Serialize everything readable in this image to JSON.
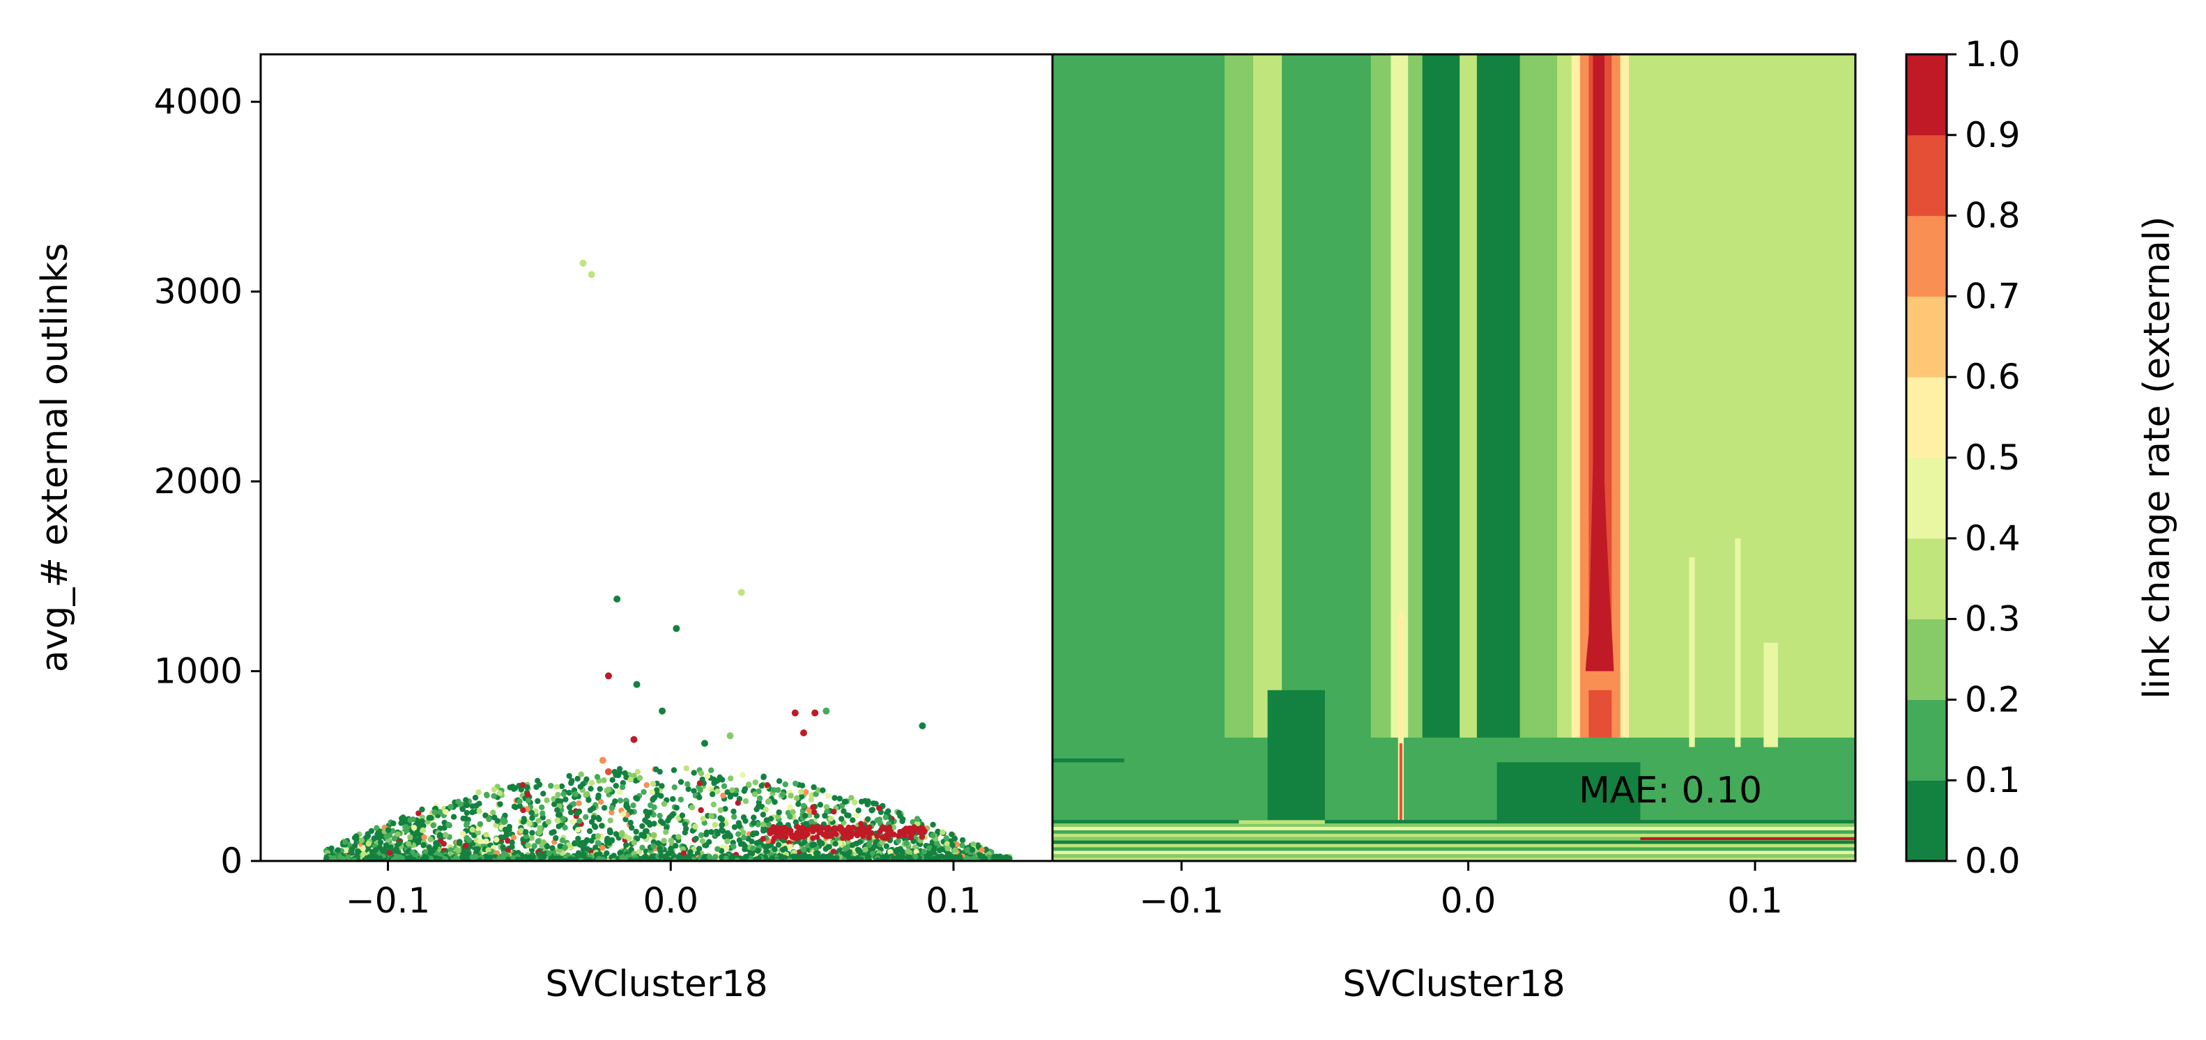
{
  "chart_data": [
    {
      "type": "scatter",
      "xlabel": "SVCluster18",
      "ylabel": "avg_# external outlinks",
      "xlim": [
        -0.145,
        0.135
      ],
      "ylim": [
        0,
        4250
      ],
      "xticks": [
        -0.1,
        0.0,
        0.1
      ],
      "xtick_labels": [
        "−0.1",
        "0.0",
        "0.1"
      ],
      "yticks": [
        0,
        1000,
        2000,
        3000,
        4000
      ],
      "ytick_labels": [
        "0",
        "1000",
        "2000",
        "3000",
        "4000"
      ],
      "color_by": "link change rate (external)",
      "points": [
        {
          "x": -0.031,
          "y": 3150,
          "c": 0.35
        },
        {
          "x": -0.028,
          "y": 3090,
          "c": 0.35
        },
        {
          "x": 0.025,
          "y": 1415,
          "c": 0.35
        },
        {
          "x": -0.019,
          "y": 1380,
          "c": 0.05
        },
        {
          "x": 0.002,
          "y": 1225,
          "c": 0.05
        },
        {
          "x": -0.022,
          "y": 975,
          "c": 0.95
        },
        {
          "x": -0.012,
          "y": 930,
          "c": 0.05
        },
        {
          "x": 0.089,
          "y": 712,
          "c": 0.05
        },
        {
          "x": 0.044,
          "y": 780,
          "c": 0.95
        },
        {
          "x": 0.051,
          "y": 780,
          "c": 0.95
        },
        {
          "x": 0.047,
          "y": 675,
          "c": 0.95
        },
        {
          "x": 0.055,
          "y": 790,
          "c": 0.15
        },
        {
          "x": -0.013,
          "y": 640,
          "c": 0.95
        },
        {
          "x": -0.024,
          "y": 530,
          "c": 0.75
        },
        {
          "x": -0.022,
          "y": 470,
          "c": 0.85
        },
        {
          "x": 0.021,
          "y": 660,
          "c": 0.25
        },
        {
          "x": -0.003,
          "y": 790,
          "c": 0.05
        },
        {
          "x": 0.012,
          "y": 620,
          "c": 0.05
        }
      ],
      "dense_cloud": {
        "x_range": [
          -0.122,
          0.12
        ],
        "y_typical_max": 450
      }
    },
    {
      "type": "heatmap",
      "xlabel": "SVCluster18",
      "xlim": [
        -0.145,
        0.135
      ],
      "ylim": [
        0,
        4250
      ],
      "xticks": [
        -0.1,
        0.0,
        0.1
      ],
      "xtick_labels": [
        "−0.1",
        "0.0",
        "0.1"
      ],
      "annotation": "MAE: 0.10",
      "vertical_bands": [
        {
          "x0": -0.145,
          "x1": -0.085,
          "c": 0.15
        },
        {
          "x0": -0.085,
          "x1": -0.075,
          "c": 0.25
        },
        {
          "x0": -0.075,
          "x1": -0.065,
          "c": 0.35
        },
        {
          "x0": -0.065,
          "x1": -0.034,
          "c": 0.15
        },
        {
          "x0": -0.034,
          "x1": -0.027,
          "c": 0.25
        },
        {
          "x0": -0.027,
          "x1": -0.021,
          "c": 0.45
        },
        {
          "x0": -0.021,
          "x1": -0.016,
          "c": 0.25
        },
        {
          "x0": -0.016,
          "x1": -0.003,
          "c": 0.05
        },
        {
          "x0": -0.003,
          "x1": 0.003,
          "c": 0.35
        },
        {
          "x0": 0.003,
          "x1": 0.018,
          "c": 0.05
        },
        {
          "x0": 0.018,
          "x1": 0.031,
          "c": 0.25
        },
        {
          "x0": 0.031,
          "x1": 0.036,
          "c": 0.35
        },
        {
          "x0": 0.036,
          "x1": 0.039,
          "c": 0.55
        },
        {
          "x0": 0.039,
          "x1": 0.042,
          "c": 0.75
        },
        {
          "x0": 0.042,
          "x1": 0.05,
          "c": 0.85
        },
        {
          "x0": 0.05,
          "x1": 0.053,
          "c": 0.75
        },
        {
          "x0": 0.053,
          "x1": 0.056,
          "c": 0.55
        },
        {
          "x0": 0.056,
          "x1": 0.06,
          "c": 0.35
        },
        {
          "x0": 0.06,
          "x1": 0.135,
          "c": 0.35
        }
      ]
    },
    {
      "type": "colorbar",
      "label": "link change rate (external)",
      "range": [
        0.0,
        1.0
      ],
      "ticks": [
        0.0,
        0.1,
        0.2,
        0.3,
        0.4,
        0.5,
        0.6,
        0.7,
        0.8,
        0.9,
        1.0
      ],
      "tick_labels": [
        "0.0",
        "0.1",
        "0.2",
        "0.3",
        "0.4",
        "0.5",
        "0.6",
        "0.7",
        "0.8",
        "0.9",
        "1.0"
      ],
      "levels": [
        {
          "from": 0.0,
          "to": 0.1,
          "color": "#138140"
        },
        {
          "from": 0.1,
          "to": 0.2,
          "color": "#43ab59"
        },
        {
          "from": 0.2,
          "to": 0.3,
          "color": "#86cb67"
        },
        {
          "from": 0.3,
          "to": 0.4,
          "color": "#c0e57c"
        },
        {
          "from": 0.4,
          "to": 0.5,
          "color": "#e9f6a2"
        },
        {
          "from": 0.5,
          "to": 0.6,
          "color": "#fff0a6"
        },
        {
          "from": 0.6,
          "to": 0.7,
          "color": "#fdc776"
        },
        {
          "from": 0.7,
          "to": 0.8,
          "color": "#f98f53"
        },
        {
          "from": 0.8,
          "to": 0.9,
          "color": "#e44f36"
        },
        {
          "from": 0.9,
          "to": 1.0,
          "color": "#c01a27"
        }
      ]
    }
  ]
}
